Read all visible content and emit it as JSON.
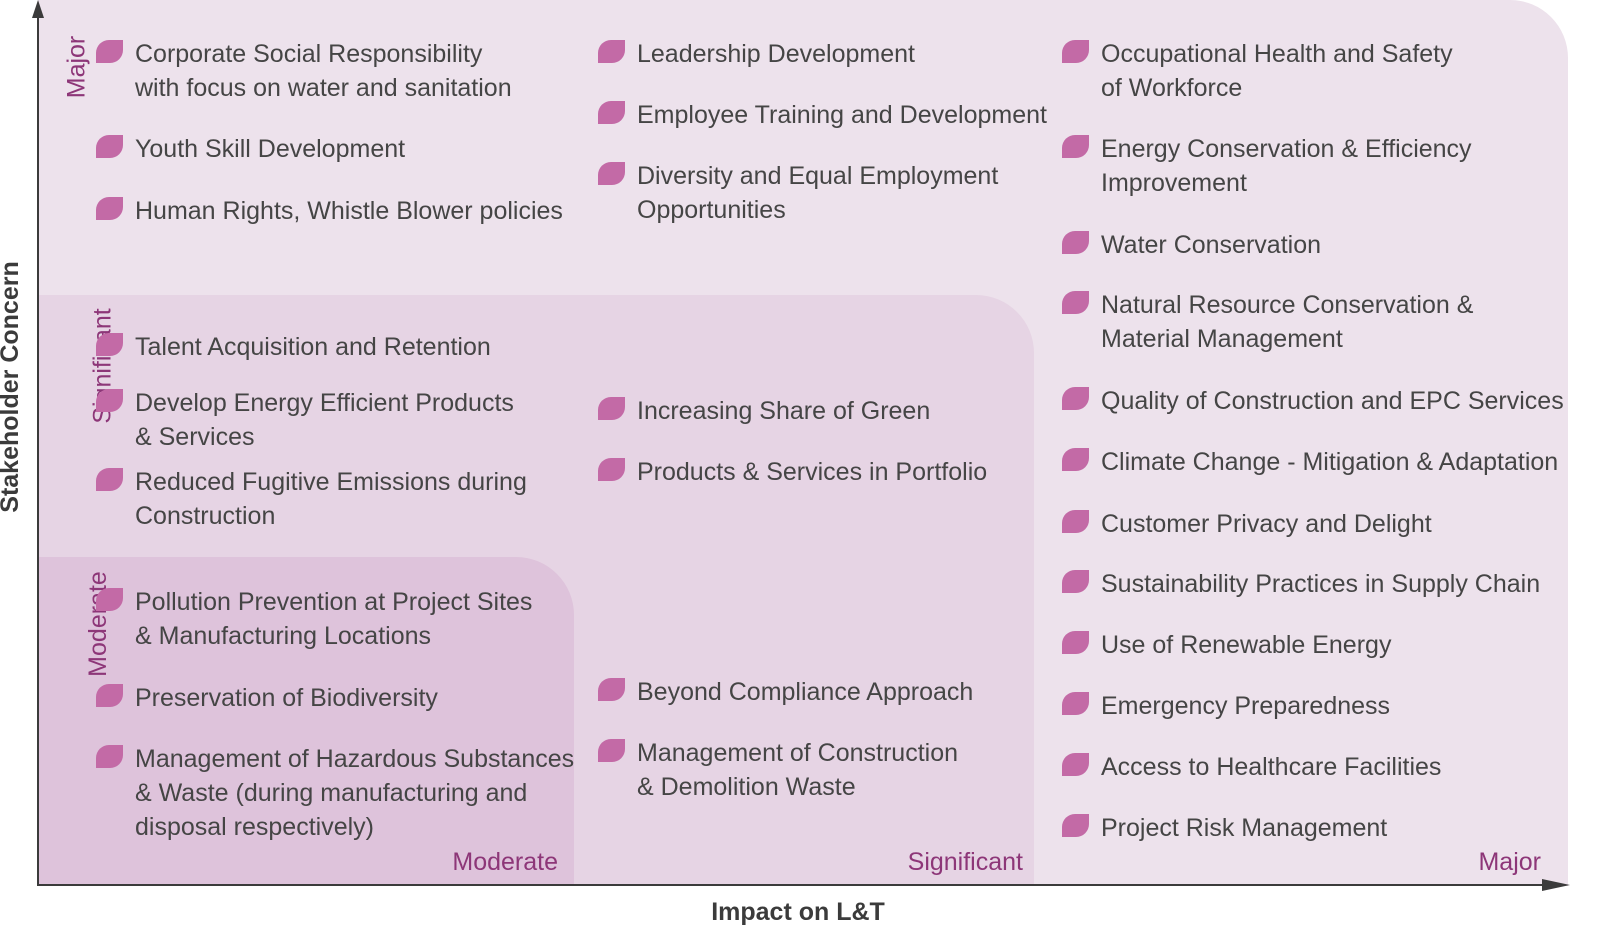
{
  "axes": {
    "y_title": "Stakeholder Concern",
    "x_title": "Impact on L&T",
    "y_levels": [
      "Major",
      "Significant",
      "Moderate"
    ],
    "x_levels": [
      "Moderate",
      "Significant",
      "Major"
    ]
  },
  "colors": {
    "major_zone": "#ede2ec",
    "significant_zone": "#e6d4e4",
    "moderate_zone": "#dec3db",
    "leaf": "#c36aa6",
    "level_text": "#8d3678",
    "item_text": "#454545"
  },
  "items": {
    "major_concern_moderate_impact": [
      "Corporate Social Responsibility\nwith focus on water and sanitation",
      "Youth Skill Development",
      "Human Rights, Whistle Blower policies"
    ],
    "major_concern_significant_impact": [
      "Leadership Development",
      "Employee Training and Development",
      "Diversity and Equal Employment\nOpportunities"
    ],
    "major_impact": [
      "Occupational Health and Safety\nof Workforce",
      "Energy Conservation & Efficiency\nImprovement",
      "Water Conservation",
      "Natural Resource Conservation &\nMaterial Management",
      "Quality of Construction and EPC Services",
      "Climate Change - Mitigation & Adaptation",
      "Customer Privacy and Delight",
      "Sustainability Practices in Supply Chain",
      "Use of Renewable Energy",
      "Emergency Preparedness",
      "Access to Healthcare Facilities",
      "Project Risk Management"
    ],
    "significant_concern_moderate_impact": [
      "Talent Acquisition and Retention",
      "Develop Energy Efficient Products\n& Services",
      "Reduced Fugitive Emissions during\nConstruction"
    ],
    "significant_concern_significant_impact": [
      "Increasing Share of Green",
      "Products & Services in Portfolio"
    ],
    "moderate_concern_moderate_impact": [
      "Pollution Prevention at Project Sites\n& Manufacturing Locations",
      "Preservation of Biodiversity",
      "Management of Hazardous Substances\n& Waste (during manufacturing and\ndisposal respectively)"
    ],
    "moderate_concern_significant_impact": [
      "Beyond Compliance Approach",
      "Management of Construction\n& Demolition Waste"
    ]
  }
}
